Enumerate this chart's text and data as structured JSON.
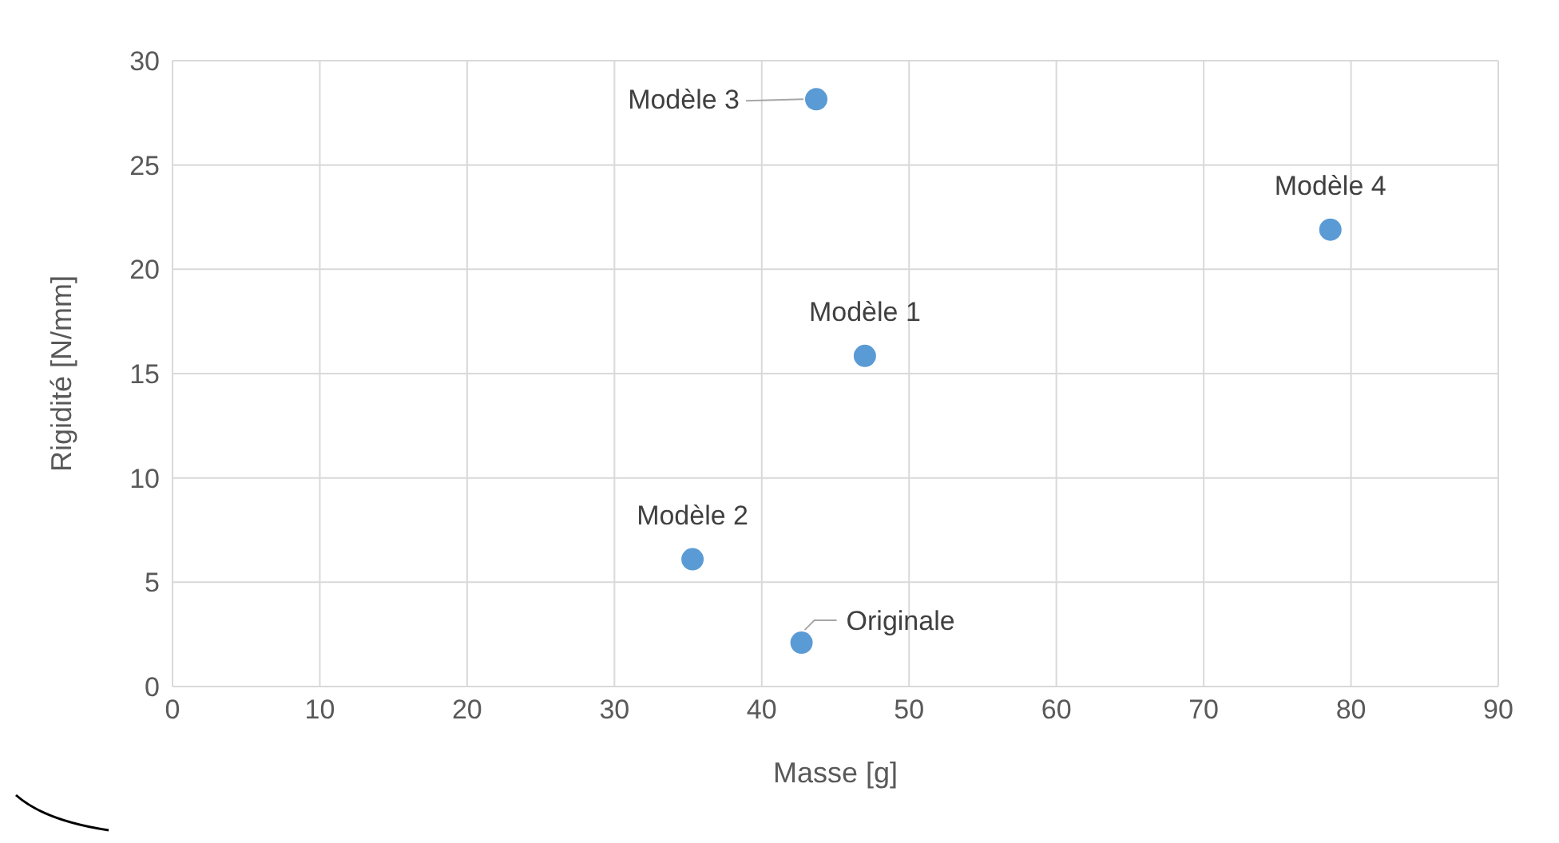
{
  "chart_data": {
    "type": "scatter",
    "xlabel": "Masse [g]",
    "ylabel": "Rigidité [N/mm]",
    "x": [
      43.7,
      78.6,
      47.0,
      35.3,
      42.7
    ],
    "series": [
      {
        "color": "#5b9bd5",
        "values": [
          28.15,
          21.9,
          15.85,
          6.1,
          2.1
        ]
      }
    ],
    "xlim": [
      0,
      90
    ],
    "xticks": [
      0,
      10,
      20,
      30,
      40,
      50,
      60,
      70,
      80,
      90
    ],
    "ylim": [
      0,
      30
    ],
    "yticks": [
      0,
      5,
      10,
      15,
      20,
      25,
      30
    ],
    "grid": true,
    "marker": "circle",
    "legend": false,
    "annotations": [
      {
        "text": "Modèle 3",
        "x": 43.7,
        "y": 28.15
      },
      {
        "text": "Modèle 4",
        "x": 78.6,
        "y": 21.9
      },
      {
        "text": "Modèle 1",
        "x": 47.0,
        "y": 15.85
      },
      {
        "text": "Modèle 2",
        "x": 35.3,
        "y": 6.1
      },
      {
        "text": "Originale",
        "x": 42.7,
        "y": 2.1
      }
    ]
  }
}
